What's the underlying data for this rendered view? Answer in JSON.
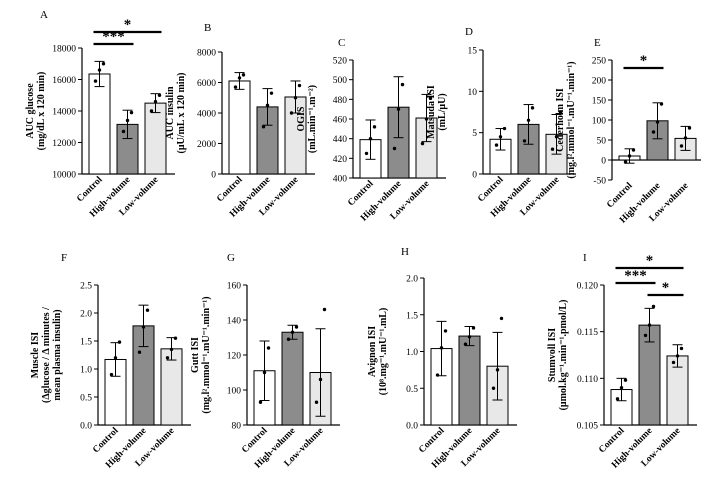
{
  "colors": {
    "control": "#ffffff",
    "high": "#8c8c8c",
    "low": "#e8e8e8",
    "stroke": "#000000"
  },
  "chart_data": [
    {
      "panel": "A",
      "type": "bar",
      "categories": [
        "Control",
        "High-volume",
        "Low-volume"
      ],
      "values": [
        16350,
        13150,
        14500
      ],
      "errors": [
        800,
        900,
        600
      ],
      "points": [
        [
          15900,
          16600,
          17000
        ],
        [
          12700,
          13400,
          13900
        ],
        [
          14000,
          14600,
          15000
        ]
      ],
      "ylabel_lines": [
        "AUC glucose",
        "(mg/dL x 120 min)"
      ],
      "ylim": [
        10000,
        18000
      ],
      "yticks": [
        10000,
        12000,
        14000,
        16000,
        18000
      ],
      "significance": [
        {
          "from": 0,
          "to": 1,
          "label": "***"
        },
        {
          "from": 0,
          "to": 2,
          "label": "*"
        }
      ]
    },
    {
      "panel": "B",
      "type": "bar",
      "categories": [
        "Control",
        "High-volume",
        "Low-volume"
      ],
      "values": [
        6100,
        4400,
        5050
      ],
      "errors": [
        550,
        1200,
        1050
      ],
      "points": [
        [
          5700,
          6300,
          6500
        ],
        [
          3100,
          4500,
          5300
        ],
        [
          4000,
          5000,
          5800
        ]
      ],
      "ylabel_lines": [
        "AUC insulin",
        "(μU/mL x 120 min)"
      ],
      "ylim": [
        0,
        8000
      ],
      "yticks": [
        0,
        2000,
        4000,
        6000,
        8000
      ],
      "significance": []
    },
    {
      "panel": "C",
      "type": "bar",
      "categories": [
        "Control",
        "High-volume",
        "Low-volume"
      ],
      "values": [
        439,
        472,
        461
      ],
      "errors": [
        20,
        31,
        24
      ],
      "points": [
        [
          425,
          440,
          452
        ],
        [
          430,
          470,
          495
        ],
        [
          435,
          460,
          481
        ]
      ],
      "ylabel_lines": [
        "OGIS",
        "(mL.min⁻¹.m⁻²)"
      ],
      "ylim": [
        400,
        520
      ],
      "yticks": [
        400,
        420,
        440,
        460,
        480,
        500,
        520
      ],
      "significance": []
    },
    {
      "panel": "D",
      "type": "bar",
      "categories": [
        "Control",
        "High-volume",
        "Low-volume"
      ],
      "values": [
        4.2,
        6.0,
        4.8
      ],
      "errors": [
        1.3,
        2.4,
        2.4
      ],
      "points": [
        [
          3.5,
          4.5,
          5.5
        ],
        [
          4.0,
          6.5,
          8.0
        ],
        [
          3.0,
          4.5,
          7.5
        ]
      ],
      "ylabel_lines": [
        "Matsuda ISI",
        "(mL/μU)"
      ],
      "ylim": [
        0,
        15
      ],
      "yticks": [
        0,
        5,
        10,
        15
      ],
      "significance": []
    },
    {
      "panel": "E",
      "type": "bar",
      "categories": [
        "Control",
        "High-volume",
        "Low-volume"
      ],
      "values": [
        10,
        98,
        54
      ],
      "errors": [
        18,
        45,
        30
      ],
      "points": [
        [
          -5,
          10,
          25
        ],
        [
          70,
          95,
          140
        ],
        [
          35,
          55,
          80
        ]
      ],
      "ylabel_lines": [
        "Cederholm ISI",
        "(mg.l².mmol⁻¹.mU⁻¹.min⁻¹)"
      ],
      "ylim": [
        -50,
        250
      ],
      "yticks": [
        -50,
        0,
        50,
        100,
        150,
        200,
        250
      ],
      "significance": [
        {
          "from": 0,
          "to": 1,
          "label": "*"
        }
      ]
    },
    {
      "panel": "F",
      "type": "bar",
      "categories": [
        "Control",
        "High-volume",
        "Low-volume"
      ],
      "values": [
        1.17,
        1.77,
        1.36
      ],
      "errors": [
        0.3,
        0.37,
        0.2
      ],
      "points": [
        [
          0.9,
          1.2,
          1.48
        ],
        [
          1.3,
          1.75,
          2.05
        ],
        [
          1.2,
          1.35,
          1.55
        ]
      ],
      "ylabel_lines": [
        "Muscle ISI",
        "(Δglucose / Δ minutes /",
        "mean plasma insulin)"
      ],
      "ylim": [
        0.0,
        2.5
      ],
      "yticks": [
        0.0,
        0.5,
        1.0,
        1.5,
        2.0,
        2.5
      ],
      "significance": []
    },
    {
      "panel": "G",
      "type": "bar",
      "categories": [
        "Control",
        "High-volume",
        "Low-volume"
      ],
      "values": [
        111,
        133,
        110
      ],
      "errors": [
        17,
        4,
        25
      ],
      "points": [
        [
          93,
          110,
          124
        ],
        [
          129,
          133,
          136
        ],
        [
          93,
          106,
          146
        ]
      ],
      "ylabel_lines": [
        "Gutt ISI",
        "(mg.l².mmol⁻¹.mU⁻¹.min⁻¹)"
      ],
      "ylim": [
        80,
        160
      ],
      "yticks": [
        80,
        100,
        120,
        140,
        160
      ],
      "significance": []
    },
    {
      "panel": "H",
      "type": "bar",
      "categories": [
        "Control",
        "High-volume",
        "Low-volume"
      ],
      "values": [
        1.04,
        1.21,
        0.8
      ],
      "errors": [
        0.37,
        0.13,
        0.46
      ],
      "points": [
        [
          0.68,
          1.05,
          1.28
        ],
        [
          1.1,
          1.2,
          1.32
        ],
        [
          0.5,
          0.75,
          1.45
        ]
      ],
      "ylabel_lines": [
        "Avignon ISI",
        "(10⁸.mg⁻¹.mU⁻¹.mL)"
      ],
      "ylim": [
        0.0,
        2.0
      ],
      "yticks": [
        0.0,
        0.5,
        1.0,
        1.5,
        2.0
      ],
      "significance": []
    },
    {
      "panel": "I",
      "type": "bar",
      "categories": [
        "Control",
        "High-volume",
        "Low-volume"
      ],
      "values": [
        0.1088,
        0.1157,
        0.1124
      ],
      "errors": [
        0.0012,
        0.0018,
        0.0012
      ],
      "points": [
        [
          0.1078,
          0.109,
          0.1098
        ],
        [
          0.1146,
          0.1157,
          0.1177
        ],
        [
          0.1117,
          0.1124,
          0.1132
        ]
      ],
      "ylabel_lines": [
        "Stumvoll ISI",
        "(μmol.kg⁻¹.min⁻¹.pmol/L)"
      ],
      "ylim": [
        0.105,
        0.12
      ],
      "yticks": [
        0.105,
        0.11,
        0.115,
        0.12
      ],
      "significance": [
        {
          "from": 0,
          "to": 1,
          "label": "***"
        },
        {
          "from": 0,
          "to": 2,
          "label": "*"
        },
        {
          "from": 1,
          "to": 2,
          "label": "*"
        }
      ]
    }
  ]
}
